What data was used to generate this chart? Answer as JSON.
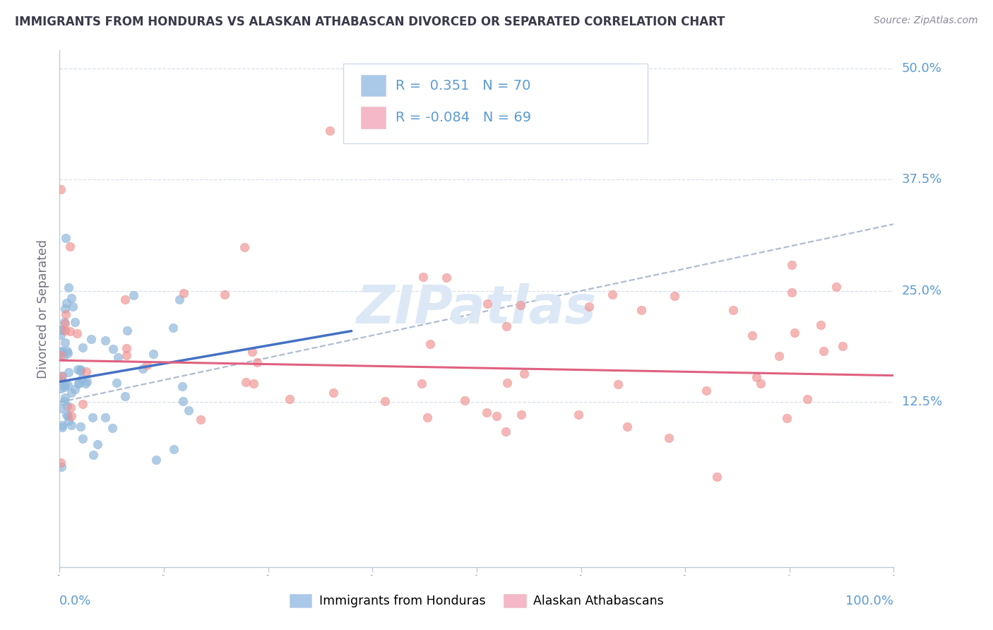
{
  "title": "IMMIGRANTS FROM HONDURAS VS ALASKAN ATHABASCAN DIVORCED OR SEPARATED CORRELATION CHART",
  "source_text": "Source: ZipAtlas.com",
  "ylabel": "Divorced or Separated",
  "ytick_labels": [
    "12.5%",
    "25.0%",
    "37.5%",
    "50.0%"
  ],
  "ytick_values": [
    0.125,
    0.25,
    0.375,
    0.5
  ],
  "xlim": [
    0.0,
    1.0
  ],
  "ylim": [
    -0.06,
    0.52
  ],
  "blue_R": 0.351,
  "blue_N": 70,
  "pink_R": -0.084,
  "pink_N": 69,
  "blue_scatter_color": "#90b8dc",
  "pink_scatter_color": "#f09090",
  "blue_line_color": "#4472c4",
  "pink_line_color": "#e06080",
  "dashed_line_color": "#b0bcd0",
  "background_color": "#ffffff",
  "grid_color": "#d8dfe8",
  "title_color": "#3a3a4a",
  "source_color": "#888898",
  "axis_label_color": "#5b9bd5",
  "watermark_text": "ZIPatlas",
  "watermark_color": "#dce8f5",
  "legend_blue_color": "#aac8e8",
  "legend_pink_color": "#f4b8c8",
  "legend_text_color": "#5b9bd5",
  "bottom_legend_blue": "Immigrants from Honduras",
  "bottom_legend_pink": "Alaskan Athabascans",
  "blue_line_x0": 0.0,
  "blue_line_y0": 0.148,
  "blue_line_x1": 0.35,
  "blue_line_y1": 0.205,
  "pink_line_x0": 0.0,
  "pink_line_y0": 0.172,
  "pink_line_x1": 1.0,
  "pink_line_y1": 0.155,
  "dash_line_x0": 0.0,
  "dash_line_y0": 0.125,
  "dash_line_x1": 1.0,
  "dash_line_y1": 0.325
}
